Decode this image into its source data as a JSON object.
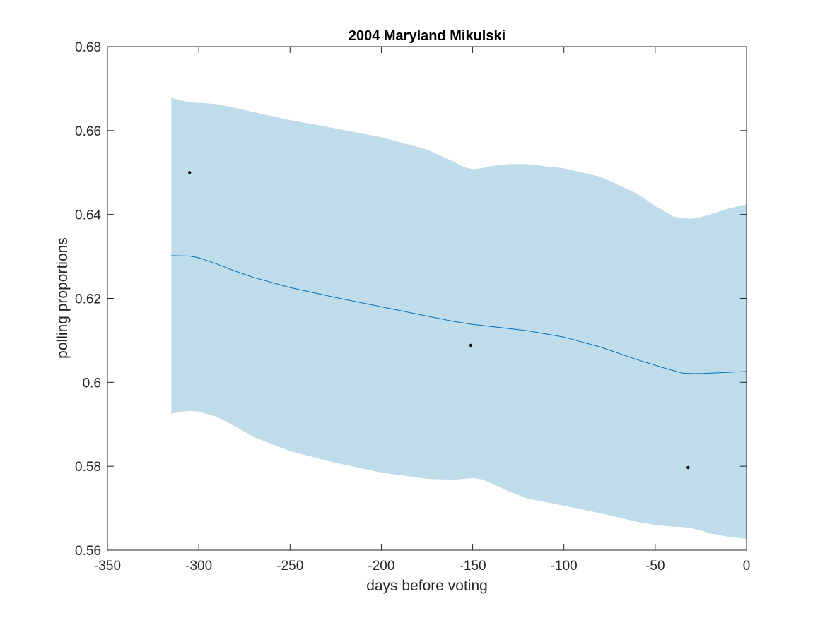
{
  "chart_data": {
    "type": "line",
    "title": "2004 Maryland Mikulski",
    "xlabel": "days before voting",
    "ylabel": "polling proportions",
    "xlim": [
      -350,
      0
    ],
    "ylim": [
      0.56,
      0.68
    ],
    "xticks": [
      -350,
      -300,
      -250,
      -200,
      -150,
      -100,
      -50,
      0
    ],
    "xtick_labels": [
      "-350",
      "-300",
      "-250",
      "-200",
      "-150",
      "-100",
      "-50",
      "0"
    ],
    "yticks": [
      0.56,
      0.58,
      0.6,
      0.62,
      0.64,
      0.66,
      0.68
    ],
    "ytick_labels": [
      "0.56",
      "0.58",
      "0.6",
      "0.62",
      "0.64",
      "0.66",
      "0.68"
    ],
    "grid": false,
    "series": [
      {
        "kind": "line",
        "color": "#0072bd",
        "x": [
          -315,
          -305,
          -300,
          -290,
          -280,
          -270,
          -250,
          -225,
          -200,
          -175,
          -160,
          -150,
          -140,
          -120,
          -100,
          -80,
          -60,
          -45,
          -35,
          -30,
          -25,
          -15,
          0
        ],
        "y": [
          0.6302,
          0.6301,
          0.6297,
          0.6282,
          0.6265,
          0.625,
          0.6226,
          0.6202,
          0.618,
          0.6158,
          0.6145,
          0.6138,
          0.6133,
          0.6123,
          0.6108,
          0.6084,
          0.6054,
          0.6034,
          0.6022,
          0.6021,
          0.6021,
          0.6023,
          0.6026
        ]
      },
      {
        "kind": "band",
        "color": "#bfdcea",
        "x": [
          -315,
          -310,
          -305,
          -300,
          -290,
          -280,
          -270,
          -250,
          -225,
          -200,
          -175,
          -160,
          -155,
          -150,
          -145,
          -140,
          -130,
          -120,
          -100,
          -80,
          -60,
          -50,
          -40,
          -35,
          -30,
          -25,
          -20,
          -10,
          0
        ],
        "upper": [
          0.6678,
          0.6672,
          0.6667,
          0.6666,
          0.6663,
          0.6654,
          0.6644,
          0.6625,
          0.6605,
          0.6584,
          0.6555,
          0.6525,
          0.6513,
          0.6508,
          0.651,
          0.6515,
          0.652,
          0.652,
          0.651,
          0.649,
          0.645,
          0.642,
          0.6395,
          0.6391,
          0.639,
          0.6394,
          0.64,
          0.6414,
          0.6424
        ],
        "lower": [
          0.5925,
          0.593,
          0.5932,
          0.593,
          0.5918,
          0.5895,
          0.587,
          0.5836,
          0.5808,
          0.5785,
          0.577,
          0.5768,
          0.577,
          0.5772,
          0.5769,
          0.576,
          0.574,
          0.5723,
          0.5706,
          0.5688,
          0.5668,
          0.566,
          0.5656,
          0.5655,
          0.5652,
          0.5647,
          0.564,
          0.5632,
          0.5627
        ]
      },
      {
        "kind": "scatter",
        "color": "#000000",
        "x": [
          -305,
          -151,
          -32
        ],
        "y": [
          0.65,
          0.6088,
          0.5797
        ]
      }
    ]
  }
}
